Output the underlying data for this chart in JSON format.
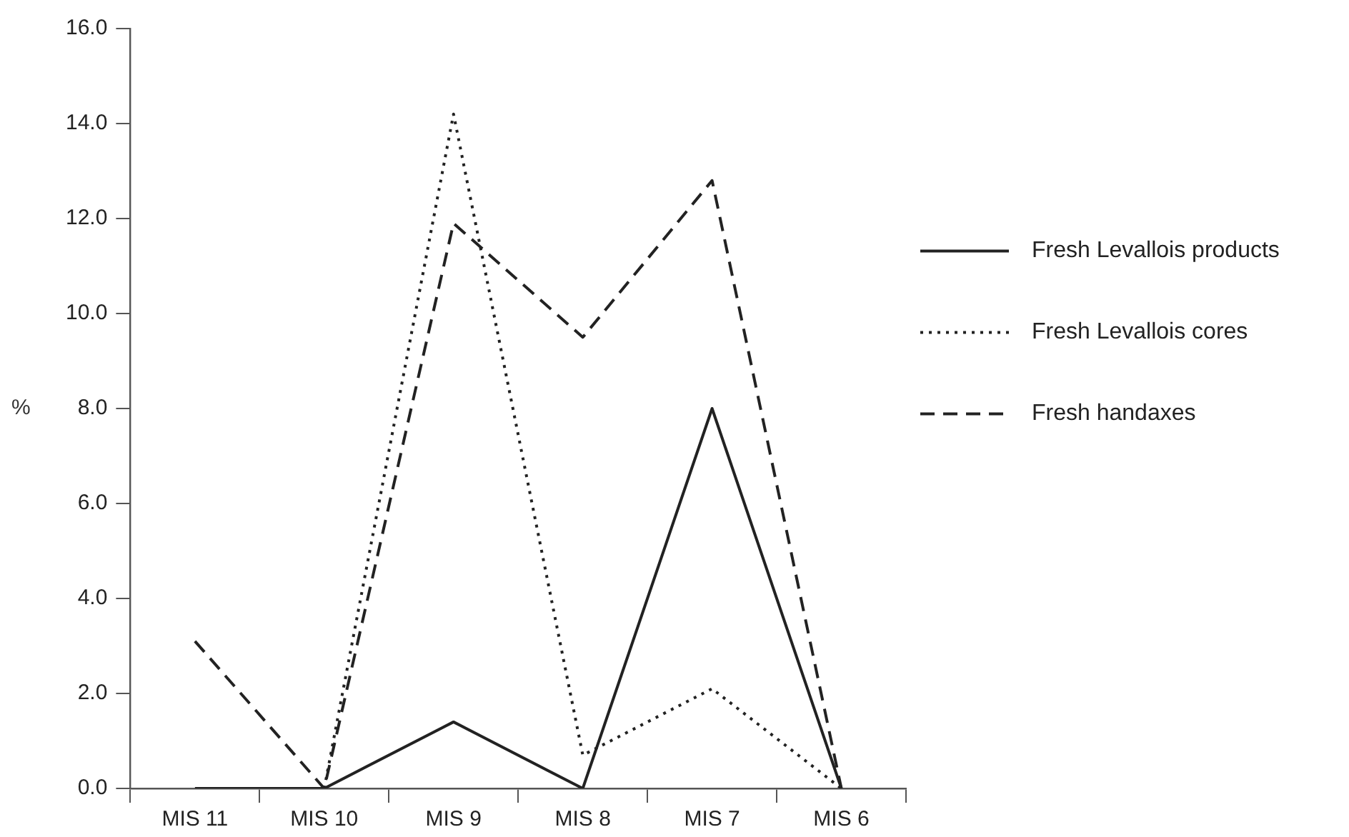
{
  "chart_data": {
    "type": "line",
    "ylabel": "%",
    "categories": [
      "MIS 11",
      "MIS 10",
      "MIS 9",
      "MIS 8",
      "MIS 7",
      "MIS 6"
    ],
    "series": [
      {
        "name": "Fresh Levallois products",
        "color": "#222222",
        "line_style": "solid",
        "values": [
          0,
          0,
          1.4,
          0,
          8.0,
          0
        ]
      },
      {
        "name": "Fresh Levallois cores",
        "color": "#222222",
        "line_style": "dotted",
        "values": [
          null,
          0,
          14.2,
          0.7,
          2.1,
          0
        ]
      },
      {
        "name": "Fresh handaxes",
        "color": "#222222",
        "line_style": "dashed",
        "values": [
          3.1,
          0,
          11.9,
          9.5,
          12.8,
          0
        ]
      }
    ],
    "ylim": [
      0,
      16
    ],
    "yticks": [
      {
        "value": 0,
        "label": "0.0"
      },
      {
        "value": 2,
        "label": "2.0"
      },
      {
        "value": 4,
        "label": "4.0"
      },
      {
        "value": 6,
        "label": "6.0"
      },
      {
        "value": 8,
        "label": "8.0"
      },
      {
        "value": 10,
        "label": "10.0"
      },
      {
        "value": 12,
        "label": "12.0"
      },
      {
        "value": 14,
        "label": "14.0"
      },
      {
        "value": 16,
        "label": "16.0"
      }
    ],
    "grid": false,
    "legend": "right",
    "marker": "none"
  }
}
